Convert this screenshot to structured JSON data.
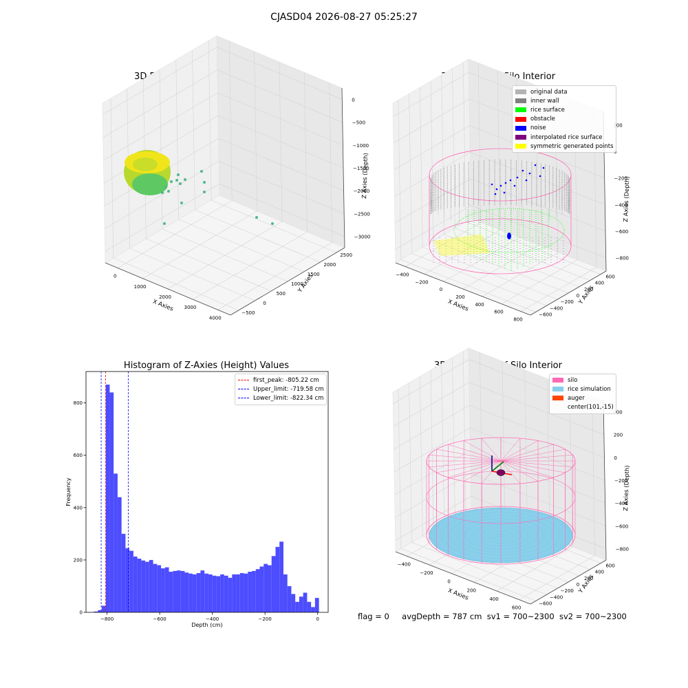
{
  "suptitle": "CJASD04 2026-08-27 05:25:27",
  "footer": {
    "flag": "flag = 0",
    "avg_depth": "avgDepth = 787 cm",
    "sv1": "sv1 = 700~2300",
    "sv2": "sv2 = 700~2300"
  },
  "colors": {
    "pane": "#f2f2f2",
    "grid": "#d4d4d4",
    "hist_bar": "#4d4dff",
    "first_peak_line": "#ff0000",
    "limit_lines": "#0000ff",
    "silo": "#ff69b4",
    "rice_simulation": "#87ceeb",
    "auger": "#ff4500",
    "original_data": "#b3b3b3",
    "inner_wall": "#808080",
    "rice_surface": "#00ff00",
    "obstacle": "#ff0000",
    "noise": "#0000ff",
    "interpolated": "#800080",
    "symmetric": "#ffff00"
  },
  "panels": {
    "raw": {
      "title": "3D Plot of Silo Interior(row data)",
      "xlabel": "X Axies",
      "ylabel": "Y Axies",
      "zlabel": "Z Axies (Depth)",
      "xticks": [
        "0",
        "1000",
        "2000",
        "3000",
        "4000"
      ],
      "yticks": [
        "−500",
        "0",
        "500",
        "1000",
        "1500",
        "2000",
        "2500"
      ],
      "zticks": [
        "0",
        "−500",
        "−1000",
        "−1500",
        "−2000",
        "−2500",
        "−3000"
      ]
    },
    "classify": {
      "title": "3D classify of Silo Interior",
      "xlabel": "X Axies",
      "ylabel": "Y Axies",
      "zlabel": "Z Axies (Depth)",
      "xticks": [
        "−400",
        "−200",
        "0",
        "200",
        "400",
        "600",
        "800"
      ],
      "yticks": [
        "−600",
        "−400",
        "−200",
        "0",
        "200",
        "400",
        "600"
      ],
      "zticks": [
        "200",
        "0",
        "−200",
        "−400",
        "−600",
        "−800"
      ],
      "legend": [
        {
          "label": "original data",
          "color": "#b3b3b3"
        },
        {
          "label": "inner wall",
          "color": "#808080"
        },
        {
          "label": "rice surface",
          "color": "#00ff00"
        },
        {
          "label": "obstacle",
          "color": "#ff0000"
        },
        {
          "label": "noise",
          "color": "#0000ff"
        },
        {
          "label": "interpolated rice surface",
          "color": "#800080"
        },
        {
          "label": "symmetric generated points",
          "color": "#ffff00"
        }
      ]
    },
    "simulation": {
      "title": "3D simulation of Silo Interior",
      "xlabel": "X Axies",
      "ylabel": "Y Axies",
      "zlabel": "Z Axies (Depth)",
      "xticks": [
        "−400",
        "−200",
        "0",
        "200",
        "400",
        "600"
      ],
      "yticks": [
        "−600",
        "−400",
        "−200",
        "0",
        "200",
        "400",
        "600"
      ],
      "zticks": [
        "400",
        "200",
        "0",
        "−200",
        "−400",
        "−600",
        "−800"
      ],
      "legend": [
        {
          "label": "silo",
          "color": "#ff69b4"
        },
        {
          "label": "rice simulation",
          "color": "#87ceeb"
        },
        {
          "label": "auger",
          "color": "#ff4500"
        },
        {
          "label": "center(101,-15)",
          "color": ""
        }
      ]
    }
  },
  "chart_data": {
    "type": "bar",
    "title": "Histogram of Z-Axies (Height) Values",
    "xlabel": "Depth (cm)",
    "ylabel": "Frequency",
    "xlim": [
      -880,
      40
    ],
    "ylim": [
      0,
      920
    ],
    "xticks": [
      -800,
      -600,
      -400,
      -200,
      0
    ],
    "xtick_labels": [
      "−800",
      "−600",
      "−400",
      "−200",
      "0"
    ],
    "yticks": [
      0,
      200,
      400,
      600,
      800
    ],
    "bin_width": 15,
    "bin_starts": [
      -850,
      -835,
      -820,
      -805,
      -790,
      -775,
      -760,
      -745,
      -730,
      -715,
      -700,
      -685,
      -670,
      -655,
      -640,
      -625,
      -610,
      -595,
      -580,
      -565,
      -550,
      -535,
      -520,
      -505,
      -490,
      -475,
      -460,
      -445,
      -430,
      -415,
      -400,
      -385,
      -370,
      -355,
      -340,
      -325,
      -310,
      -295,
      -280,
      -265,
      -250,
      -235,
      -220,
      -205,
      -190,
      -175,
      -160,
      -145,
      -130,
      -115,
      -100,
      -85,
      -70,
      -55,
      -40,
      -25,
      -10
    ],
    "values": [
      3,
      8,
      25,
      870,
      840,
      530,
      440,
      300,
      245,
      235,
      213,
      205,
      198,
      193,
      200,
      185,
      180,
      168,
      172,
      155,
      158,
      160,
      158,
      152,
      148,
      145,
      150,
      160,
      148,
      145,
      140,
      138,
      145,
      140,
      132,
      145,
      145,
      150,
      148,
      155,
      158,
      165,
      175,
      185,
      180,
      215,
      250,
      270,
      145,
      100,
      70,
      40,
      60,
      75,
      40,
      20,
      55
    ],
    "lines": [
      {
        "label": "first_peak: -805.22 cm",
        "x": -805.22,
        "color": "#ff0000"
      },
      {
        "label": "Upper_limit: -719.58 cm",
        "x": -719.58,
        "color": "#0000ff"
      },
      {
        "label": "Lower_limit: -822.34 cm",
        "x": -822.34,
        "color": "#0000ff"
      }
    ],
    "legend_position": "top-right",
    "grid": false
  }
}
